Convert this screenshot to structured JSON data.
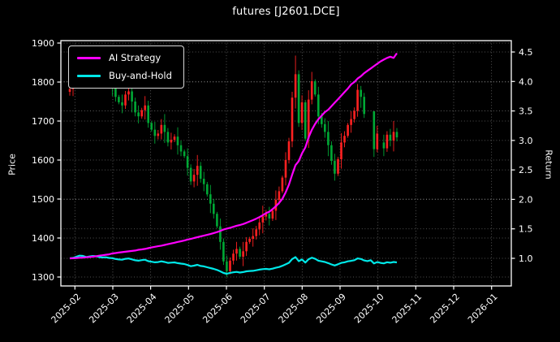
{
  "chart_data": {
    "type": "candlestick+line",
    "title": "futures [J2601.DCE]",
    "ylabel_left": "Price",
    "ylabel_right": "Return",
    "x_tick_labels": [
      "2025-02",
      "2025-03",
      "2025-04",
      "2025-05",
      "2025-06",
      "2025-07",
      "2025-08",
      "2025-09",
      "2025-10",
      "2025-11",
      "2025-12",
      "2026-01"
    ],
    "price_tick_labels": [
      "1300",
      "1400",
      "1500",
      "1600",
      "1700",
      "1800",
      "1900"
    ],
    "return_tick_labels": [
      "1.0",
      "1.5",
      "2.0",
      "2.5",
      "3.0",
      "3.5",
      "4.0",
      "4.5"
    ],
    "ylim_price": [
      1277,
      1906
    ],
    "ylim_return": [
      0.53,
      4.69
    ],
    "grid": true,
    "legend_position": "upper-left",
    "series": [
      {
        "name": "AI Strategy",
        "axis": "return",
        "color": "#ff00ff"
      },
      {
        "name": "Buy-and-Hold",
        "axis": "return",
        "color": "#00e8e8",
        "basis": "close divided by first close"
      }
    ],
    "colors": {
      "up_candle": "#ff2121",
      "down_candle": "#00a835",
      "ai_strategy": "#ff00ff",
      "buy_and_hold": "#00e8e8",
      "background": "#000000",
      "foreground": "#ffffff",
      "grid": "rgba(255,255,255,0.42)"
    },
    "first_open": 1775,
    "gap_indices": [
      91,
      92,
      95
    ],
    "candles_hlc": [
      [
        1792,
        1765,
        1782
      ],
      [
        1813,
        1764,
        1795
      ],
      [
        1834,
        1789,
        1828
      ],
      [
        1886,
        1804,
        1862
      ],
      [
        1874,
        1843,
        1855
      ],
      [
        1860,
        1817,
        1822
      ],
      [
        1858,
        1802,
        1838
      ],
      [
        1861,
        1829,
        1852
      ],
      [
        1867,
        1831,
        1846
      ],
      [
        1874,
        1792,
        1820
      ],
      [
        1830,
        1798,
        1808
      ],
      [
        1833,
        1790,
        1815
      ],
      [
        1821,
        1789,
        1795
      ],
      [
        1819,
        1764,
        1788
      ],
      [
        1800,
        1750,
        1762
      ],
      [
        1767,
        1743,
        1748
      ],
      [
        1768,
        1720,
        1740
      ],
      [
        1777,
        1731,
        1768
      ],
      [
        1791,
        1753,
        1776
      ],
      [
        1804,
        1722,
        1750
      ],
      [
        1760,
        1712,
        1722
      ],
      [
        1740,
        1694,
        1712
      ],
      [
        1734,
        1706,
        1728
      ],
      [
        1764,
        1704,
        1740
      ],
      [
        1752,
        1683,
        1695
      ],
      [
        1700,
        1673,
        1678
      ],
      [
        1698,
        1642,
        1662
      ],
      [
        1677,
        1653,
        1668
      ],
      [
        1705,
        1653,
        1690
      ],
      [
        1718,
        1644,
        1672
      ],
      [
        1682,
        1635,
        1645
      ],
      [
        1670,
        1627,
        1652
      ],
      [
        1666,
        1646,
        1660
      ],
      [
        1684,
        1614,
        1638
      ],
      [
        1650,
        1610,
        1622
      ],
      [
        1627,
        1605,
        1610
      ],
      [
        1630,
        1560,
        1580
      ],
      [
        1589,
        1536,
        1545
      ],
      [
        1577,
        1530,
        1562
      ],
      [
        1613,
        1534,
        1585
      ],
      [
        1595,
        1542,
        1552
      ],
      [
        1570,
        1520,
        1538
      ],
      [
        1544,
        1506,
        1512
      ],
      [
        1536,
        1464,
        1488
      ],
      [
        1500,
        1450,
        1462
      ],
      [
        1467,
        1425,
        1430
      ],
      [
        1450,
        1370,
        1390
      ],
      [
        1399,
        1331,
        1340
      ],
      [
        1355,
        1300,
        1315
      ],
      [
        1350,
        1307,
        1342
      ],
      [
        1370,
        1332,
        1360
      ],
      [
        1390,
        1342,
        1372
      ],
      [
        1378,
        1346,
        1352
      ],
      [
        1390,
        1328,
        1366
      ],
      [
        1402,
        1354,
        1390
      ],
      [
        1403,
        1385,
        1398
      ],
      [
        1425,
        1378,
        1405
      ],
      [
        1431,
        1396,
        1422
      ],
      [
        1455,
        1407,
        1440
      ],
      [
        1483,
        1412,
        1455
      ],
      [
        1472,
        1445,
        1462
      ],
      [
        1480,
        1432,
        1450
      ],
      [
        1476,
        1444,
        1470
      ],
      [
        1522,
        1446,
        1498
      ],
      [
        1532,
        1486,
        1520
      ],
      [
        1560,
        1515,
        1555
      ],
      [
        1620,
        1535,
        1600
      ],
      [
        1657,
        1591,
        1648
      ],
      [
        1775,
        1633,
        1760
      ],
      [
        1868,
        1732,
        1820
      ],
      [
        1830,
        1685,
        1695
      ],
      [
        1766,
        1677,
        1748
      ],
      [
        1754,
        1649,
        1655
      ],
      [
        1779,
        1631,
        1755
      ],
      [
        1826,
        1743,
        1802
      ],
      [
        1807,
        1763,
        1768
      ],
      [
        1788,
        1692,
        1712
      ],
      [
        1721,
        1683,
        1692
      ],
      [
        1707,
        1657,
        1672
      ],
      [
        1700,
        1610,
        1638
      ],
      [
        1648,
        1588,
        1598
      ],
      [
        1616,
        1547,
        1565
      ],
      [
        1608,
        1559,
        1602
      ],
      [
        1669,
        1578,
        1645
      ],
      [
        1674,
        1633,
        1662
      ],
      [
        1695,
        1657,
        1690
      ],
      [
        1725,
        1670,
        1705
      ],
      [
        1735,
        1696,
        1726
      ],
      [
        1795,
        1711,
        1780
      ],
      [
        1790,
        1734,
        1762
      ],
      [
        1772,
        1708,
        1718
      ],
      [
        1736,
        1680,
        1698
      ],
      [
        1731,
        1692,
        1725
      ],
      [
        1702,
        1608,
        1628
      ],
      [
        1688,
        1620,
        1668
      ],
      [
        1673,
        1640,
        1645
      ],
      [
        1665,
        1610,
        1630
      ],
      [
        1674,
        1621,
        1665
      ],
      [
        1680,
        1635,
        1650
      ],
      [
        1700,
        1622,
        1672
      ],
      [
        1682,
        1648,
        1658
      ]
    ],
    "ai_strategy_return": [
      1.0,
      1.002,
      1.005,
      1.01,
      1.012,
      1.018,
      1.022,
      1.028,
      1.035,
      1.045,
      1.052,
      1.06,
      1.068,
      1.082,
      1.09,
      1.098,
      1.105,
      1.112,
      1.118,
      1.125,
      1.132,
      1.145,
      1.152,
      1.16,
      1.172,
      1.185,
      1.195,
      1.205,
      1.215,
      1.228,
      1.24,
      1.252,
      1.265,
      1.278,
      1.29,
      1.302,
      1.318,
      1.33,
      1.345,
      1.358,
      1.372,
      1.385,
      1.398,
      1.412,
      1.428,
      1.445,
      1.465,
      1.488,
      1.505,
      1.518,
      1.535,
      1.552,
      1.565,
      1.582,
      1.602,
      1.625,
      1.648,
      1.672,
      1.7,
      1.732,
      1.768,
      1.79,
      1.835,
      1.885,
      1.94,
      2.01,
      2.12,
      2.25,
      2.42,
      2.58,
      2.65,
      2.78,
      2.88,
      3.05,
      3.18,
      3.28,
      3.36,
      3.42,
      3.48,
      3.52,
      3.58,
      3.64,
      3.7,
      3.76,
      3.82,
      3.88,
      3.95,
      3.99,
      4.05,
      4.09,
      4.14,
      4.18,
      4.22,
      4.26,
      4.3,
      4.34,
      4.37,
      4.4,
      4.42,
      4.4,
      4.48
    ]
  }
}
